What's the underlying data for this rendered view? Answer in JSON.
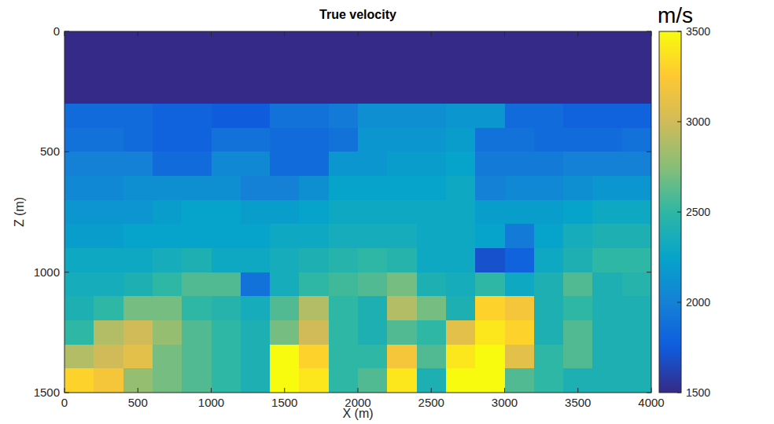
{
  "chart_data": {
    "type": "heatmap",
    "title": "True velocity",
    "xlabel": "X (m)",
    "ylabel": "Z (m)",
    "x": [
      100,
      300,
      500,
      700,
      900,
      1100,
      1300,
      1500,
      1700,
      1900,
      2100,
      2300,
      2500,
      2700,
      2900,
      3100,
      3300,
      3500,
      3700,
      3900
    ],
    "y": [
      50,
      150,
      250,
      350,
      450,
      550,
      650,
      750,
      850,
      950,
      1050,
      1150,
      1250,
      1350,
      1450
    ],
    "values": [
      [
        1500,
        1500,
        1500,
        1500,
        1500,
        1500,
        1500,
        1500,
        1500,
        1500,
        1500,
        1500,
        1500,
        1500,
        1500,
        1500,
        1500,
        1500,
        1500,
        1500
      ],
      [
        1500,
        1500,
        1500,
        1500,
        1500,
        1500,
        1500,
        1500,
        1500,
        1500,
        1500,
        1500,
        1500,
        1500,
        1500,
        1500,
        1500,
        1500,
        1500,
        1500
      ],
      [
        1500,
        1500,
        1500,
        1500,
        1500,
        1500,
        1500,
        1500,
        1500,
        1500,
        1500,
        1500,
        1500,
        1500,
        1500,
        1500,
        1500,
        1500,
        1500,
        1500
      ],
      [
        1850,
        1850,
        1850,
        1800,
        1800,
        1750,
        1750,
        1900,
        1900,
        1950,
        2100,
        2100,
        2100,
        2150,
        2150,
        1850,
        1850,
        1800,
        1800,
        1800
      ],
      [
        1900,
        1900,
        1850,
        1800,
        1800,
        1900,
        1900,
        1850,
        1850,
        1900,
        2150,
        2150,
        2150,
        2200,
        1900,
        1900,
        1850,
        1850,
        1850,
        1900
      ],
      [
        2000,
        2000,
        2000,
        1850,
        1850,
        2050,
        2050,
        1850,
        1850,
        2150,
        2150,
        2200,
        2200,
        2250,
        1950,
        1950,
        1950,
        2000,
        2000,
        2000
      ],
      [
        2050,
        2050,
        2100,
        2100,
        2100,
        2100,
        2000,
        2000,
        2100,
        2250,
        2250,
        2250,
        2250,
        2300,
        2000,
        2050,
        2050,
        2100,
        2150,
        2150
      ],
      [
        2150,
        2150,
        2150,
        2200,
        2250,
        2250,
        2200,
        2200,
        2250,
        2300,
        2300,
        2300,
        2300,
        2300,
        2200,
        2200,
        2200,
        2250,
        2300,
        2300
      ],
      [
        2200,
        2200,
        2250,
        2250,
        2250,
        2250,
        2250,
        2300,
        2300,
        2350,
        2350,
        2350,
        2300,
        2300,
        2250,
        1950,
        2250,
        2350,
        2400,
        2400
      ],
      [
        2300,
        2300,
        2300,
        2350,
        2400,
        2300,
        2300,
        2350,
        2400,
        2450,
        2500,
        2450,
        2300,
        2300,
        1700,
        1800,
        2300,
        2400,
        2500,
        2500
      ],
      [
        2350,
        2350,
        2400,
        2500,
        2600,
        2600,
        1900,
        2350,
        2500,
        2550,
        2600,
        2700,
        2400,
        2350,
        2500,
        2300,
        2400,
        2600,
        2400,
        2450
      ],
      [
        2400,
        2500,
        2700,
        2700,
        2500,
        2450,
        2350,
        2600,
        2900,
        2500,
        2400,
        2900,
        2700,
        2400,
        3300,
        3200,
        2400,
        2500,
        2400,
        2400
      ],
      [
        2500,
        2900,
        3000,
        2800,
        2600,
        2500,
        2400,
        2700,
        3000,
        2500,
        2400,
        2600,
        2500,
        3100,
        3400,
        3300,
        2400,
        2600,
        2400,
        2400
      ],
      [
        2900,
        3000,
        3100,
        2700,
        2600,
        2500,
        2400,
        3500,
        3300,
        2500,
        2500,
        3200,
        2600,
        3400,
        3500,
        3100,
        2500,
        2600,
        2400,
        2400
      ],
      [
        3300,
        3200,
        2800,
        2700,
        2600,
        2500,
        2400,
        3500,
        3400,
        2500,
        2600,
        3400,
        2400,
        3500,
        3500,
        2600,
        2500,
        2400,
        2400,
        2400
      ]
    ],
    "xlim": [
      0,
      4000
    ],
    "ylim": [
      0,
      1500
    ],
    "xticks": [
      0,
      500,
      1000,
      1500,
      2000,
      2500,
      3000,
      3500,
      4000
    ],
    "yticks": [
      0,
      500,
      1000,
      1500
    ],
    "colorbar_label": "m/s",
    "colorbar_range": [
      1500,
      3500
    ],
    "colorbar_ticks": [
      1500,
      2000,
      2500,
      3000,
      3500
    ]
  }
}
